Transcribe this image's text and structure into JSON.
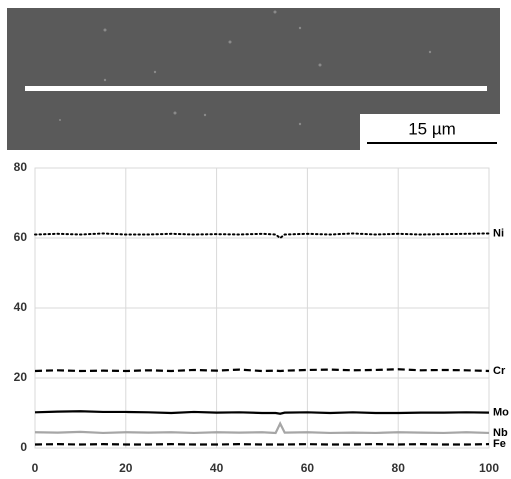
{
  "image": {
    "scale_bar": "15 µm"
  },
  "chart_data": {
    "type": "line",
    "x": [
      0,
      5,
      10,
      15,
      20,
      25,
      30,
      35,
      40,
      45,
      50,
      53,
      54,
      55,
      60,
      65,
      70,
      75,
      80,
      85,
      90,
      95,
      100
    ],
    "xlim": [
      0,
      100
    ],
    "xticks": [
      0,
      20,
      40,
      60,
      80,
      100
    ],
    "ylim": [
      0,
      80
    ],
    "yticks": [
      0,
      20,
      40,
      60,
      80
    ],
    "grid": true,
    "series": [
      {
        "name": "Ni",
        "color": "#000000",
        "dash": "dotted",
        "values": [
          61,
          61.2,
          61,
          61.3,
          61,
          61,
          61.2,
          61,
          61.1,
          61,
          61.2,
          61,
          60,
          61,
          61.2,
          61,
          61.3,
          61,
          61.2,
          61,
          61.1,
          61.2,
          61.3
        ]
      },
      {
        "name": "Cr",
        "color": "#000000",
        "dash": "dashed",
        "values": [
          22,
          22.2,
          22,
          22.1,
          22,
          22.2,
          22,
          22.3,
          22.1,
          22.4,
          22,
          22.1,
          22,
          22.1,
          22.3,
          22.4,
          22.2,
          22.3,
          22.5,
          22.2,
          22.3,
          22.2,
          22
        ]
      },
      {
        "name": "Mo",
        "color": "#000000",
        "dash": "solid",
        "values": [
          10.2,
          10.4,
          10.5,
          10.3,
          10.3,
          10.2,
          10,
          10.3,
          10.1,
          10.2,
          10,
          10,
          9.8,
          10.1,
          10.2,
          10,
          10.2,
          10,
          10,
          10.1,
          10.1,
          10.2,
          10.1
        ]
      },
      {
        "name": "Nb",
        "color": "#a6a6a6",
        "dash": "solid",
        "values": [
          4.5,
          4.4,
          4.6,
          4.3,
          4.5,
          4.4,
          4.5,
          4.3,
          4.5,
          4.4,
          4.5,
          4.3,
          7,
          4.4,
          4.5,
          4.3,
          4.4,
          4.3,
          4.5,
          4.4,
          4.3,
          4.5,
          4.3
        ]
      },
      {
        "name": "Fe",
        "color": "#000000",
        "dash": "dashed",
        "values": [
          1,
          1.1,
          1,
          1.1,
          1,
          1,
          1.1,
          1,
          1,
          1.1,
          1,
          1,
          1,
          1,
          1.1,
          1,
          1,
          1.1,
          1,
          1.1,
          1,
          1,
          1.1
        ]
      }
    ]
  }
}
